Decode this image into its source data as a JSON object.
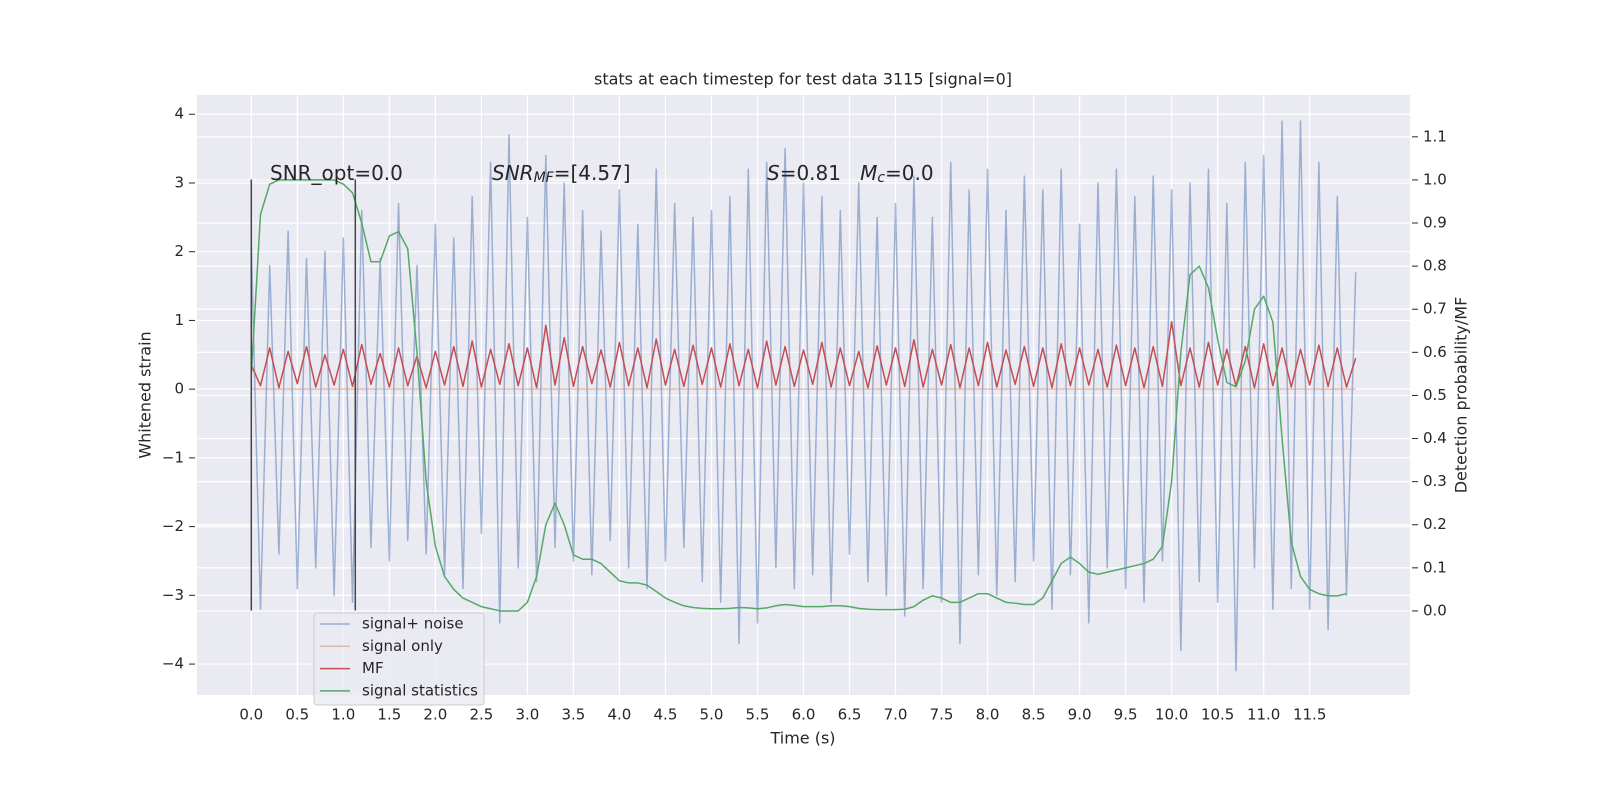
{
  "chart_data": {
    "type": "line",
    "title": "stats at each timestep for test data 3115 [signal=0]",
    "xlabel": "Time (s)",
    "ylabel": "Whitened strain",
    "y2label": "Detection probability/MF",
    "annotations": [
      {
        "parts": [
          {
            "text": "SNR_opt=0.0",
            "style": "normal"
          }
        ]
      },
      {
        "parts": [
          {
            "text": "SNR",
            "style": "italic"
          },
          {
            "text": "MF",
            "style": "italic-sub"
          },
          {
            "text": "=[4.57]",
            "style": "normal"
          }
        ]
      },
      {
        "parts": [
          {
            "text": "S",
            "style": "italic"
          },
          {
            "text": "=0.81   ",
            "style": "normal"
          },
          {
            "text": "M",
            "style": "italic"
          },
          {
            "text": "c",
            "style": "italic-sub"
          },
          {
            "text": "=0.0",
            "style": "normal"
          }
        ]
      }
    ],
    "vlines": [
      {
        "x": 0,
        "ymin": -3.22,
        "ymax": 3.05
      },
      {
        "x": 1.13,
        "ymin": -3.22,
        "ymax": 3.05
      }
    ],
    "vline_color": "#444444",
    "x": [
      0,
      0.1,
      0.2,
      0.3,
      0.4,
      0.5,
      0.6,
      0.7,
      0.8,
      0.9,
      1.0,
      1.1,
      1.2,
      1.3,
      1.4,
      1.5,
      1.6,
      1.7,
      1.8,
      1.9,
      2.0,
      2.1,
      2.2,
      2.3,
      2.4,
      2.5,
      2.6,
      2.7,
      2.8,
      2.9,
      3.0,
      3.1,
      3.2,
      3.3,
      3.4,
      3.5,
      3.6,
      3.7,
      3.8,
      3.9,
      4.0,
      4.1,
      4.2,
      4.3,
      4.4,
      4.5,
      4.6,
      4.7,
      4.8,
      4.9,
      5.0,
      5.1,
      5.2,
      5.3,
      5.4,
      5.5,
      5.6,
      5.7,
      5.8,
      5.9,
      6.0,
      6.1,
      6.2,
      6.3,
      6.4,
      6.5,
      6.6,
      6.7,
      6.8,
      6.9,
      7.0,
      7.1,
      7.2,
      7.3,
      7.4,
      7.5,
      7.6,
      7.7,
      7.8,
      7.9,
      8.0,
      8.1,
      8.2,
      8.3,
      8.4,
      8.5,
      8.6,
      8.7,
      8.8,
      8.9,
      9.0,
      9.1,
      9.2,
      9.3,
      9.4,
      9.5,
      9.6,
      9.7,
      9.8,
      9.9,
      10.0,
      10.1,
      10.2,
      10.3,
      10.4,
      10.5,
      10.6,
      10.7,
      10.8,
      10.9,
      11.0,
      11.1,
      11.2,
      11.3,
      11.4,
      11.5,
      11.6,
      11.7,
      11.8,
      11.9,
      12.0
    ],
    "series": [
      {
        "name": "signal+ noise",
        "color": "#4c72b0",
        "opacity": 0.5,
        "values": [
          2.1,
          -3.2,
          1.8,
          -2.4,
          2.3,
          -2.9,
          1.9,
          -2.6,
          2.0,
          -3.0,
          2.2,
          -3.1,
          2.6,
          -2.3,
          1.9,
          -2.5,
          2.7,
          -2.2,
          1.8,
          -2.4,
          2.4,
          -2.7,
          2.2,
          -2.9,
          2.8,
          -2.1,
          3.3,
          -3.4,
          3.7,
          -2.6,
          2.5,
          -2.8,
          3.4,
          -2.3,
          3.0,
          -2.5,
          2.6,
          -2.7,
          2.3,
          -2.2,
          2.9,
          -2.6,
          2.4,
          -2.9,
          3.2,
          -2.5,
          2.7,
          -2.3,
          2.5,
          -2.8,
          2.6,
          -3.1,
          2.8,
          -3.7,
          3.2,
          -3.4,
          3.3,
          -2.6,
          3.5,
          -2.9,
          3.0,
          -2.7,
          2.8,
          -3.1,
          2.6,
          -2.4,
          3.0,
          -2.8,
          2.5,
          -3.0,
          2.7,
          -3.3,
          3.1,
          -2.9,
          2.5,
          -3.1,
          3.3,
          -3.7,
          2.9,
          -2.7,
          3.2,
          -3.0,
          2.6,
          -2.8,
          3.1,
          -2.5,
          2.9,
          -3.2,
          3.2,
          -2.7,
          2.4,
          -3.4,
          3.0,
          -2.6,
          3.2,
          -2.9,
          2.8,
          -3.1,
          3.1,
          -2.5,
          2.9,
          -3.8,
          3.0,
          -2.8,
          3.2,
          -3.1,
          2.7,
          -4.1,
          3.3,
          -2.6,
          3.4,
          -3.2,
          3.9,
          -2.9,
          3.9,
          -3.2,
          3.3,
          -3.5,
          2.8,
          -3.0,
          1.7
        ]
      },
      {
        "name": "signal only",
        "color": "#dd8452",
        "opacity": 0.5,
        "values": [
          0,
          0,
          0,
          0,
          0,
          0,
          0,
          0,
          0,
          0,
          0,
          0,
          0,
          0,
          0,
          0,
          0,
          0,
          0,
          0,
          0,
          0,
          0,
          0,
          0,
          0,
          0,
          0,
          0,
          0,
          0,
          0,
          0,
          0,
          0,
          0,
          0,
          0,
          0,
          0,
          0,
          0,
          0,
          0,
          0,
          0,
          0,
          0,
          0,
          0,
          0,
          0,
          0,
          0,
          0,
          0,
          0,
          0,
          0,
          0,
          0,
          0,
          0,
          0,
          0,
          0,
          0,
          0,
          0,
          0,
          0,
          0,
          0,
          0,
          0,
          0,
          0,
          0,
          0,
          0,
          0,
          0,
          0,
          0,
          0,
          0,
          0,
          0,
          0,
          0,
          0,
          0,
          0,
          0,
          0,
          0,
          0,
          0,
          0,
          0,
          0,
          0,
          0,
          0,
          0,
          0,
          0,
          0,
          0,
          0,
          0,
          0,
          0,
          0,
          0,
          0,
          0,
          0,
          0,
          0,
          0
        ]
      },
      {
        "name": "MF",
        "color": "#c44e52",
        "opacity": 1,
        "values": [
          0.35,
          0.05,
          0.6,
          0.02,
          0.55,
          0.08,
          0.62,
          0.03,
          0.5,
          0.06,
          0.58,
          0.04,
          0.65,
          0.07,
          0.52,
          0.03,
          0.6,
          0.05,
          0.48,
          0.02,
          0.55,
          0.06,
          0.62,
          0.04,
          0.7,
          0.03,
          0.58,
          0.07,
          0.66,
          0.05,
          0.6,
          0.02,
          0.93,
          0.06,
          0.75,
          0.04,
          0.62,
          0.08,
          0.57,
          0.03,
          0.68,
          0.05,
          0.6,
          0.02,
          0.73,
          0.06,
          0.58,
          0.04,
          0.64,
          0.07,
          0.6,
          0.03,
          0.66,
          0.05,
          0.58,
          0.02,
          0.7,
          0.06,
          0.62,
          0.04,
          0.57,
          0.07,
          0.68,
          0.03,
          0.6,
          0.05,
          0.55,
          0.02,
          0.63,
          0.06,
          0.6,
          0.04,
          0.72,
          0.03,
          0.58,
          0.06,
          0.65,
          0.02,
          0.6,
          0.05,
          0.68,
          0.03,
          0.57,
          0.07,
          0.62,
          0.04,
          0.6,
          0.02,
          0.66,
          0.05,
          0.6,
          0.06,
          0.58,
          0.03,
          0.64,
          0.05,
          0.6,
          0.02,
          0.62,
          0.04,
          0.98,
          0.05,
          0.6,
          0.03,
          0.68,
          0.06,
          0.58,
          0.04,
          0.62,
          0.02,
          0.66,
          0.05,
          0.6,
          0.03,
          0.58,
          0.06,
          0.64,
          0.04,
          0.6,
          0.03,
          0.45
        ]
      },
      {
        "name": "signal statistics",
        "color": "#55a868",
        "opacity": 1,
        "axis": "y2",
        "values": [
          0.55,
          0.92,
          0.99,
          1.0,
          1.0,
          1.0,
          1.0,
          1.0,
          1.0,
          1.0,
          0.99,
          0.97,
          0.9,
          0.81,
          0.81,
          0.87,
          0.88,
          0.84,
          0.6,
          0.3,
          0.15,
          0.08,
          0.05,
          0.03,
          0.02,
          0.01,
          0.005,
          0.0,
          0.0,
          0.0,
          0.02,
          0.08,
          0.2,
          0.25,
          0.2,
          0.13,
          0.12,
          0.12,
          0.11,
          0.09,
          0.07,
          0.065,
          0.065,
          0.06,
          0.045,
          0.03,
          0.02,
          0.012,
          0.008,
          0.006,
          0.005,
          0.005,
          0.006,
          0.008,
          0.007,
          0.005,
          0.007,
          0.012,
          0.015,
          0.013,
          0.01,
          0.01,
          0.01,
          0.012,
          0.012,
          0.01,
          0.006,
          0.004,
          0.003,
          0.003,
          0.003,
          0.004,
          0.01,
          0.025,
          0.035,
          0.03,
          0.02,
          0.02,
          0.03,
          0.04,
          0.04,
          0.03,
          0.02,
          0.018,
          0.015,
          0.015,
          0.03,
          0.07,
          0.11,
          0.125,
          0.11,
          0.09,
          0.085,
          0.09,
          0.095,
          0.1,
          0.105,
          0.11,
          0.12,
          0.15,
          0.3,
          0.6,
          0.78,
          0.8,
          0.75,
          0.63,
          0.53,
          0.52,
          0.58,
          0.7,
          0.73,
          0.67,
          0.4,
          0.16,
          0.08,
          0.05,
          0.04,
          0.035,
          0.035,
          0.04,
          null
        ]
      }
    ],
    "xlim": [
      -0.59,
      12.59
    ],
    "xticks": [
      {
        "value": 0,
        "label": "0.0"
      },
      {
        "value": 0.5,
        "label": "0.5"
      },
      {
        "value": 1,
        "label": "1.0"
      },
      {
        "value": 1.5,
        "label": "1.5"
      },
      {
        "value": 2,
        "label": "2.0"
      },
      {
        "value": 2.5,
        "label": "2.5"
      },
      {
        "value": 3,
        "label": "3.0"
      },
      {
        "value": 3.5,
        "label": "3.5"
      },
      {
        "value": 4,
        "label": "4.0"
      },
      {
        "value": 4.5,
        "label": "4.5"
      },
      {
        "value": 5,
        "label": "5.0"
      },
      {
        "value": 5.5,
        "label": "5.5"
      },
      {
        "value": 6,
        "label": "6.0"
      },
      {
        "value": 6.5,
        "label": "6.5"
      },
      {
        "value": 7,
        "label": "7.0"
      },
      {
        "value": 7.5,
        "label": "7.5"
      },
      {
        "value": 8,
        "label": "8.0"
      },
      {
        "value": 8.5,
        "label": "8.5"
      },
      {
        "value": 9,
        "label": "9.0"
      },
      {
        "value": 9.5,
        "label": "9.5"
      },
      {
        "value": 10,
        "label": "10.0"
      },
      {
        "value": 10.5,
        "label": "10.5"
      },
      {
        "value": 11,
        "label": "11.0"
      },
      {
        "value": 11.5,
        "label": "11.5"
      }
    ],
    "ylim": [
      -4.45,
      4.28
    ],
    "yticks": [
      {
        "value": -4,
        "label": "−4"
      },
      {
        "value": -3,
        "label": "−3"
      },
      {
        "value": -2,
        "label": "−2"
      },
      {
        "value": -1,
        "label": "−1"
      },
      0,
      1,
      2,
      3,
      4
    ],
    "y2lim": [
      -0.195,
      1.197
    ],
    "y2ticks": [
      {
        "value": 0,
        "label": "0.0"
      },
      {
        "value": 0.1,
        "label": "0.1"
      },
      {
        "value": 0.2,
        "label": "0.2"
      },
      {
        "value": 0.3,
        "label": "0.3"
      },
      {
        "value": 0.4,
        "label": "0.4"
      },
      {
        "value": 0.5,
        "label": "0.5"
      },
      {
        "value": 0.6,
        "label": "0.6"
      },
      {
        "value": 0.7,
        "label": "0.7"
      },
      {
        "value": 0.8,
        "label": "0.8"
      },
      {
        "value": 0.9,
        "label": "0.9"
      },
      {
        "value": 1,
        "label": "1.0"
      },
      {
        "value": 1.1,
        "label": "1.1"
      }
    ],
    "grid": true,
    "legend_loc": "lower left"
  }
}
